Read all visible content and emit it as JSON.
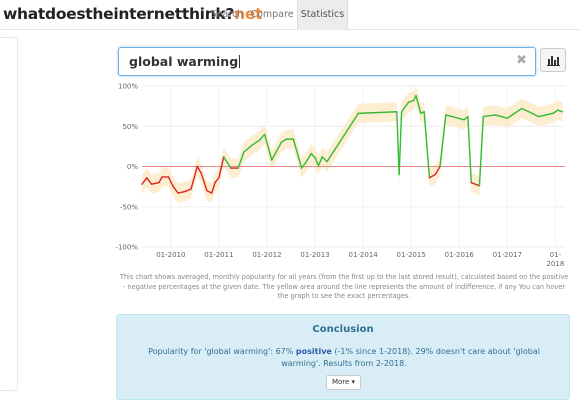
{
  "brand": {
    "name": "whatdoestheinternetthink?",
    "suffix": "net"
  },
  "nav": [
    {
      "label": "Search"
    },
    {
      "label": "Compare"
    },
    {
      "label": "Statistics",
      "active": true
    }
  ],
  "search": {
    "value": "global warming",
    "clear_icon": "close-icon"
  },
  "chart_button": {
    "icon": "bar-chart-icon"
  },
  "colors": {
    "positive": "#33bb33",
    "negative": "#dd2222",
    "band": "#fdebc9",
    "zero_line": "#e88888",
    "accent": "#f0883a"
  },
  "chart_data": {
    "type": "line",
    "y_ticks": [
      "100%",
      "50%",
      "0%",
      "-50%",
      "-100%"
    ],
    "y_tick_values": [
      100,
      50,
      0,
      -50,
      -100
    ],
    "x_ticks": [
      "01-2010",
      "01-2011",
      "01-2012",
      "01-2013",
      "01-2014",
      "01-2015",
      "01-2016",
      "01-2017",
      "01-2018"
    ],
    "x_tick_values": [
      2010.0,
      2011.0,
      2012.0,
      2013.0,
      2014.0,
      2015.0,
      2016.0,
      2017.0,
      2018.0
    ],
    "xlim": [
      2009.4,
      2018.2
    ],
    "ylim": [
      -100,
      100
    ],
    "grid": true,
    "zero_line": true,
    "band_width": 12,
    "points": [
      [
        2009.4,
        -22
      ],
      [
        2009.5,
        -14
      ],
      [
        2009.6,
        -22
      ],
      [
        2009.75,
        -20
      ],
      [
        2009.82,
        -13
      ],
      [
        2009.95,
        -13
      ],
      [
        2010.05,
        -25
      ],
      [
        2010.15,
        -33
      ],
      [
        2010.3,
        -31
      ],
      [
        2010.42,
        -28
      ],
      [
        2010.55,
        0
      ],
      [
        2010.63,
        -8
      ],
      [
        2010.75,
        -30
      ],
      [
        2010.85,
        -33
      ],
      [
        2010.92,
        -20
      ],
      [
        2011.0,
        -14
      ],
      [
        2011.1,
        12
      ],
      [
        2011.25,
        -2
      ],
      [
        2011.4,
        -2
      ],
      [
        2011.52,
        18
      ],
      [
        2011.68,
        26
      ],
      [
        2011.85,
        33
      ],
      [
        2011.95,
        40
      ],
      [
        2012.1,
        8
      ],
      [
        2012.3,
        30
      ],
      [
        2012.4,
        34
      ],
      [
        2012.55,
        34
      ],
      [
        2012.72,
        -2
      ],
      [
        2012.82,
        6
      ],
      [
        2012.92,
        16
      ],
      [
        2013.0,
        11
      ],
      [
        2013.07,
        1
      ],
      [
        2013.15,
        12
      ],
      [
        2013.25,
        6
      ],
      [
        2013.9,
        66
      ],
      [
        2014.7,
        68
      ],
      [
        2014.75,
        -10
      ],
      [
        2014.8,
        68
      ],
      [
        2014.95,
        80
      ],
      [
        2015.05,
        82
      ],
      [
        2015.1,
        88
      ],
      [
        2015.2,
        66
      ],
      [
        2015.27,
        68
      ],
      [
        2015.38,
        -14
      ],
      [
        2015.5,
        -10
      ],
      [
        2015.6,
        0
      ],
      [
        2015.72,
        64
      ],
      [
        2016.1,
        58
      ],
      [
        2016.18,
        62
      ],
      [
        2016.25,
        -20
      ],
      [
        2016.42,
        -24
      ],
      [
        2016.5,
        62
      ],
      [
        2016.75,
        64
      ],
      [
        2017.0,
        60
      ],
      [
        2017.15,
        66
      ],
      [
        2017.3,
        72
      ],
      [
        2017.45,
        68
      ],
      [
        2017.65,
        62
      ],
      [
        2017.8,
        64
      ],
      [
        2017.95,
        66
      ],
      [
        2018.05,
        70
      ],
      [
        2018.15,
        68
      ]
    ]
  },
  "caption": "This chart shows averaged, monthly popularity for all years (from the first up to the last stored result), calculated based on the positive - negative percentages at the given date. The yellow area around the line represents the amount of indifference, if any You can hover the graph to see the exact percentages.",
  "conclusion": {
    "title": "Conclusion",
    "text_before": "Popularity for 'global warming': 67%",
    "positive_word": "positive",
    "text_after": "(-1% since 1-2018). 29% doesn't care about 'global warming'. Results from 2-2018.",
    "more_label": "More"
  }
}
